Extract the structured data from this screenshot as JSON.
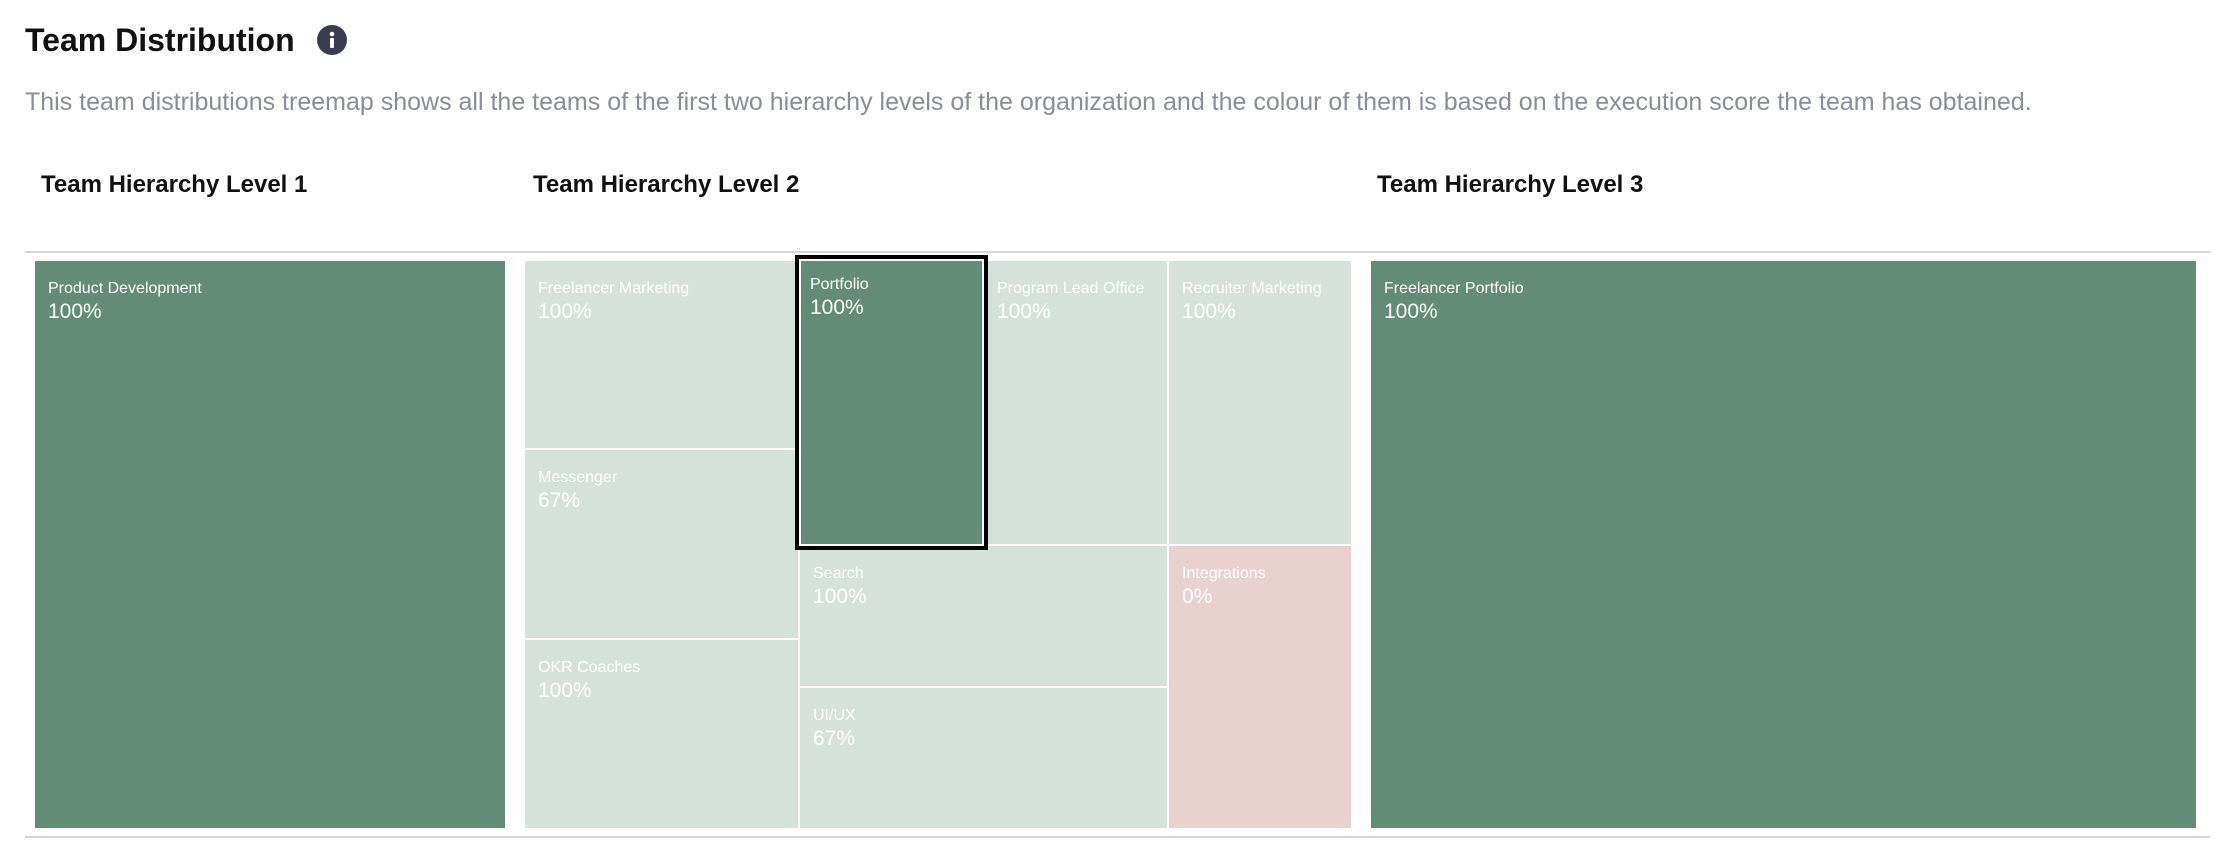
{
  "header": {
    "title": "Team Distribution",
    "info_icon": "info-icon",
    "description": "This team distributions treemap shows all the teams of the first two hierarchy levels of the organization and the colour of them is based on the execution score the team has obtained."
  },
  "levels": {
    "level1": "Team Hierarchy Level 1",
    "level2": "Team Hierarchy Level 2",
    "level3": "Team Hierarchy Level 3"
  },
  "colors": {
    "high_score": "#628c77",
    "high_score_dimmed": "#d7e1dc",
    "low_score_dimmed": "#e9d1d0",
    "selected_border": "#000000"
  },
  "chart_data": [
    {
      "type": "treemap",
      "title": "Team Hierarchy Level 1",
      "items": [
        {
          "name": "Product Development",
          "value_label": "100%",
          "score": 100
        }
      ]
    },
    {
      "type": "treemap",
      "title": "Team Hierarchy Level 2",
      "selected": "Portfolio",
      "items": [
        {
          "name": "Freelancer Marketing",
          "value_label": "100%",
          "score": 100
        },
        {
          "name": "Messenger",
          "value_label": "67%",
          "score": 67
        },
        {
          "name": "OKR Coaches",
          "value_label": "100%",
          "score": 100
        },
        {
          "name": "Portfolio",
          "value_label": "100%",
          "score": 100
        },
        {
          "name": "Program Lead Office",
          "value_label": "100%",
          "score": 100
        },
        {
          "name": "Recruiter Marketing",
          "value_label": "100%",
          "score": 100
        },
        {
          "name": "Search",
          "value_label": "100%",
          "score": 100
        },
        {
          "name": "UI/UX",
          "value_label": "67%",
          "score": 67
        },
        {
          "name": "Integrations",
          "value_label": "0%",
          "score": 0
        }
      ]
    },
    {
      "type": "treemap",
      "title": "Team Hierarchy Level 3",
      "items": [
        {
          "name": "Freelancer Portfolio",
          "value_label": "100%",
          "score": 100
        }
      ]
    }
  ]
}
